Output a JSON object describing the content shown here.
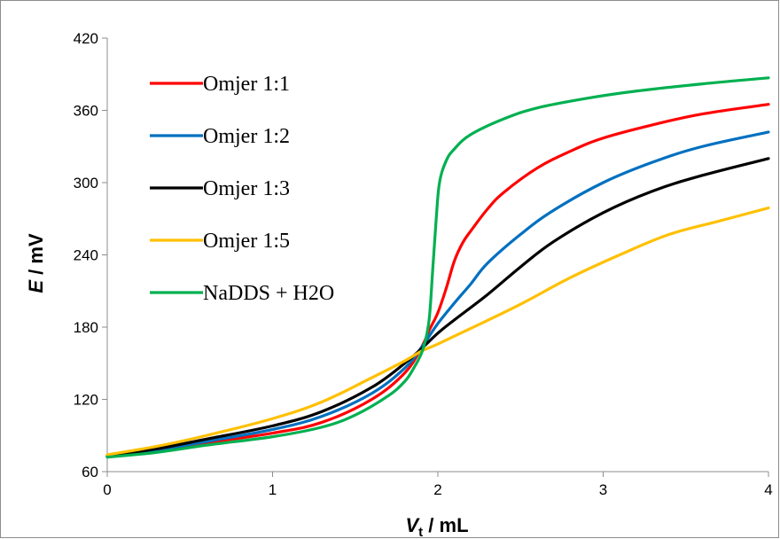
{
  "chart_data": {
    "type": "line",
    "title": "",
    "xlabel": {
      "italic": "V",
      "sub": "t",
      "rest": " / mL"
    },
    "ylabel": {
      "italic": "E",
      "rest": " / mV"
    },
    "xlim": [
      0,
      4
    ],
    "ylim": [
      60,
      420
    ],
    "xticks": [
      0,
      1,
      2,
      3,
      4
    ],
    "yticks": [
      60,
      120,
      180,
      240,
      300,
      360,
      420
    ],
    "grid": false,
    "legend_position": "top-left",
    "series": [
      {
        "name": "Omjer 1:1",
        "color": "#ff0000",
        "points": [
          [
            0,
            73
          ],
          [
            0.3,
            78
          ],
          [
            0.6,
            84
          ],
          [
            1.0,
            92
          ],
          [
            1.3,
            101
          ],
          [
            1.6,
            120
          ],
          [
            1.8,
            142
          ],
          [
            1.9,
            163
          ],
          [
            1.95,
            178
          ],
          [
            2.0,
            192
          ],
          [
            2.05,
            212
          ],
          [
            2.1,
            235
          ],
          [
            2.15,
            250
          ],
          [
            2.2,
            260
          ],
          [
            2.3,
            278
          ],
          [
            2.4,
            292
          ],
          [
            2.6,
            312
          ],
          [
            2.8,
            326
          ],
          [
            3.0,
            337
          ],
          [
            3.3,
            348
          ],
          [
            3.6,
            357
          ],
          [
            4.0,
            365
          ]
        ]
      },
      {
        "name": "Omjer 1:2",
        "color": "#0070c0",
        "points": [
          [
            0,
            73
          ],
          [
            0.3,
            78
          ],
          [
            0.6,
            85
          ],
          [
            1.0,
            95
          ],
          [
            1.3,
            106
          ],
          [
            1.6,
            125
          ],
          [
            1.8,
            146
          ],
          [
            1.9,
            163
          ],
          [
            2.0,
            183
          ],
          [
            2.1,
            200
          ],
          [
            2.2,
            216
          ],
          [
            2.3,
            233
          ],
          [
            2.5,
            257
          ],
          [
            2.7,
            277
          ],
          [
            3.0,
            300
          ],
          [
            3.3,
            317
          ],
          [
            3.6,
            330
          ],
          [
            4.0,
            342
          ]
        ]
      },
      {
        "name": "Omjer 1:3",
        "color": "#000000",
        "points": [
          [
            0,
            73
          ],
          [
            0.3,
            79
          ],
          [
            0.6,
            87
          ],
          [
            1.0,
            98
          ],
          [
            1.3,
            110
          ],
          [
            1.6,
            130
          ],
          [
            1.8,
            150
          ],
          [
            1.9,
            162
          ],
          [
            2.0,
            175
          ],
          [
            2.1,
            186
          ],
          [
            2.3,
            207
          ],
          [
            2.5,
            230
          ],
          [
            2.7,
            251
          ],
          [
            3.0,
            275
          ],
          [
            3.3,
            293
          ],
          [
            3.6,
            306
          ],
          [
            4.0,
            320
          ]
        ]
      },
      {
        "name": "Omjer 1:5",
        "color": "#ffc000",
        "points": [
          [
            0,
            74
          ],
          [
            0.3,
            81
          ],
          [
            0.6,
            90
          ],
          [
            1.0,
            104
          ],
          [
            1.3,
            118
          ],
          [
            1.6,
            138
          ],
          [
            1.8,
            152
          ],
          [
            1.9,
            160
          ],
          [
            2.0,
            166
          ],
          [
            2.2,
            179
          ],
          [
            2.5,
            199
          ],
          [
            2.8,
            221
          ],
          [
            3.1,
            240
          ],
          [
            3.4,
            257
          ],
          [
            3.7,
            268
          ],
          [
            4.0,
            279
          ]
        ]
      },
      {
        "name": "NaDDS + H2O",
        "color": "#00b050",
        "points": [
          [
            0,
            72
          ],
          [
            0.3,
            76
          ],
          [
            0.6,
            82
          ],
          [
            1.0,
            89
          ],
          [
            1.3,
            97
          ],
          [
            1.5,
            107
          ],
          [
            1.7,
            123
          ],
          [
            1.8,
            135
          ],
          [
            1.85,
            145
          ],
          [
            1.9,
            158
          ],
          [
            1.93,
            172
          ],
          [
            1.95,
            190
          ],
          [
            1.97,
            230
          ],
          [
            1.99,
            270
          ],
          [
            2.01,
            300
          ],
          [
            2.05,
            318
          ],
          [
            2.1,
            328
          ],
          [
            2.2,
            340
          ],
          [
            2.4,
            353
          ],
          [
            2.6,
            362
          ],
          [
            2.9,
            370
          ],
          [
            3.2,
            376
          ],
          [
            3.6,
            382
          ],
          [
            4.0,
            387
          ]
        ]
      }
    ]
  }
}
